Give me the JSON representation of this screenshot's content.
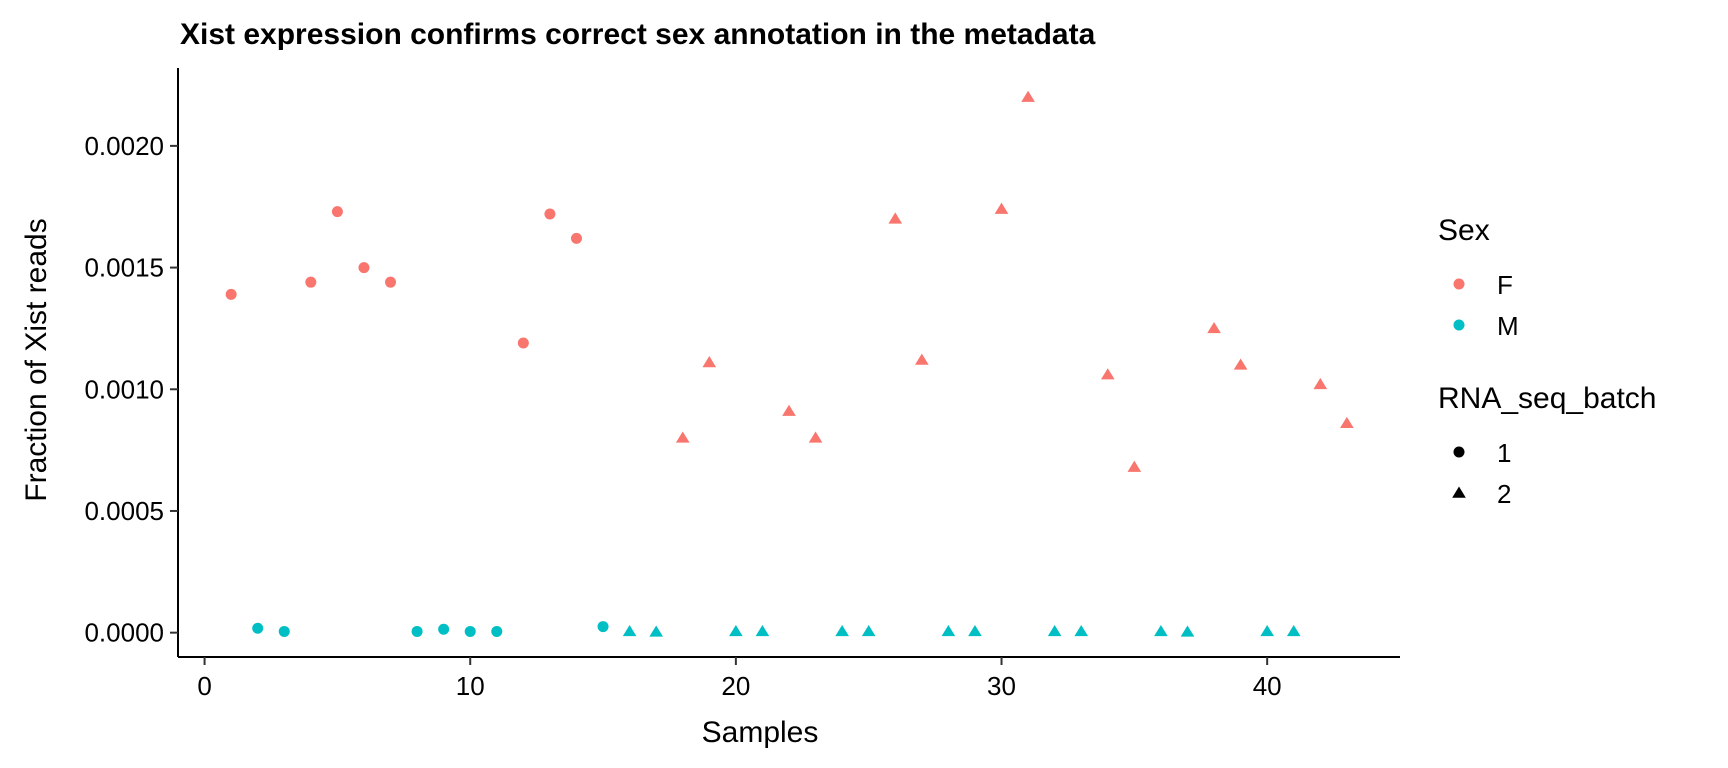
{
  "chart_data": {
    "type": "scatter",
    "title": "Xist expression confirms correct sex annotation in the metadata",
    "xlabel": "Samples",
    "ylabel": "Fraction of Xist reads",
    "xlim": [
      -1,
      45
    ],
    "ylim": [
      -0.0001,
      0.00232
    ],
    "x_ticks": [
      0,
      10,
      20,
      30,
      40
    ],
    "x_tick_labels": [
      "0",
      "10",
      "20",
      "30",
      "40"
    ],
    "y_ticks": [
      0,
      0.0005,
      0.001,
      0.0015,
      0.002
    ],
    "y_tick_labels": [
      "0.0000",
      "0.0005",
      "0.0010",
      "0.0015",
      "0.0020"
    ],
    "grid": false,
    "legend_position": "right",
    "legends": [
      {
        "title": "Sex",
        "entries": [
          {
            "label": "F",
            "color": "#F8766D",
            "shape": "circle"
          },
          {
            "label": "M",
            "color": "#00BFC4",
            "shape": "circle"
          }
        ]
      },
      {
        "title": "RNA_seq_batch",
        "entries": [
          {
            "label": "1",
            "color": "#000000",
            "shape": "circle"
          },
          {
            "label": "2",
            "color": "#000000",
            "shape": "triangle"
          }
        ]
      }
    ],
    "colors": {
      "F": "#F8766D",
      "M": "#00BFC4"
    },
    "points": [
      {
        "x": 1,
        "y": 0.00139,
        "sex": "F",
        "batch": "1"
      },
      {
        "x": 2,
        "y": 1.8e-05,
        "sex": "M",
        "batch": "1"
      },
      {
        "x": 3,
        "y": 5e-06,
        "sex": "M",
        "batch": "1"
      },
      {
        "x": 4,
        "y": 0.00144,
        "sex": "F",
        "batch": "1"
      },
      {
        "x": 5,
        "y": 0.00173,
        "sex": "F",
        "batch": "1"
      },
      {
        "x": 6,
        "y": 0.0015,
        "sex": "F",
        "batch": "1"
      },
      {
        "x": 7,
        "y": 0.00144,
        "sex": "F",
        "batch": "1"
      },
      {
        "x": 8,
        "y": 5e-06,
        "sex": "M",
        "batch": "1"
      },
      {
        "x": 9,
        "y": 1.4e-05,
        "sex": "M",
        "batch": "1"
      },
      {
        "x": 10,
        "y": 5e-06,
        "sex": "M",
        "batch": "1"
      },
      {
        "x": 11,
        "y": 5e-06,
        "sex": "M",
        "batch": "1"
      },
      {
        "x": 12,
        "y": 0.00119,
        "sex": "F",
        "batch": "1"
      },
      {
        "x": 13,
        "y": 0.00172,
        "sex": "F",
        "batch": "1"
      },
      {
        "x": 14,
        "y": 0.00162,
        "sex": "F",
        "batch": "1"
      },
      {
        "x": 15,
        "y": 2.5e-05,
        "sex": "M",
        "batch": "1"
      },
      {
        "x": 16,
        "y": 5e-06,
        "sex": "M",
        "batch": "2"
      },
      {
        "x": 17,
        "y": 3e-06,
        "sex": "M",
        "batch": "2"
      },
      {
        "x": 18,
        "y": 0.0008,
        "sex": "F",
        "batch": "2"
      },
      {
        "x": 19,
        "y": 0.00111,
        "sex": "F",
        "batch": "2"
      },
      {
        "x": 20,
        "y": 5e-06,
        "sex": "M",
        "batch": "2"
      },
      {
        "x": 21,
        "y": 5e-06,
        "sex": "M",
        "batch": "2"
      },
      {
        "x": 22,
        "y": 0.00091,
        "sex": "F",
        "batch": "2"
      },
      {
        "x": 23,
        "y": 0.0008,
        "sex": "F",
        "batch": "2"
      },
      {
        "x": 24,
        "y": 5e-06,
        "sex": "M",
        "batch": "2"
      },
      {
        "x": 25,
        "y": 5e-06,
        "sex": "M",
        "batch": "2"
      },
      {
        "x": 26,
        "y": 0.0017,
        "sex": "F",
        "batch": "2"
      },
      {
        "x": 27,
        "y": 0.00112,
        "sex": "F",
        "batch": "2"
      },
      {
        "x": 28,
        "y": 5e-06,
        "sex": "M",
        "batch": "2"
      },
      {
        "x": 29,
        "y": 5e-06,
        "sex": "M",
        "batch": "2"
      },
      {
        "x": 30,
        "y": 0.00174,
        "sex": "F",
        "batch": "2"
      },
      {
        "x": 31,
        "y": 0.0022,
        "sex": "F",
        "batch": "2"
      },
      {
        "x": 32,
        "y": 5e-06,
        "sex": "M",
        "batch": "2"
      },
      {
        "x": 33,
        "y": 5e-06,
        "sex": "M",
        "batch": "2"
      },
      {
        "x": 34,
        "y": 0.00106,
        "sex": "F",
        "batch": "2"
      },
      {
        "x": 35,
        "y": 0.00068,
        "sex": "F",
        "batch": "2"
      },
      {
        "x": 36,
        "y": 5e-06,
        "sex": "M",
        "batch": "2"
      },
      {
        "x": 37,
        "y": 3e-06,
        "sex": "M",
        "batch": "2"
      },
      {
        "x": 38,
        "y": 0.00125,
        "sex": "F",
        "batch": "2"
      },
      {
        "x": 39,
        "y": 0.0011,
        "sex": "F",
        "batch": "2"
      },
      {
        "x": 40,
        "y": 5e-06,
        "sex": "M",
        "batch": "2"
      },
      {
        "x": 41,
        "y": 5e-06,
        "sex": "M",
        "batch": "2"
      },
      {
        "x": 42,
        "y": 0.00102,
        "sex": "F",
        "batch": "2"
      },
      {
        "x": 43,
        "y": 0.00086,
        "sex": "F",
        "batch": "2"
      }
    ]
  }
}
